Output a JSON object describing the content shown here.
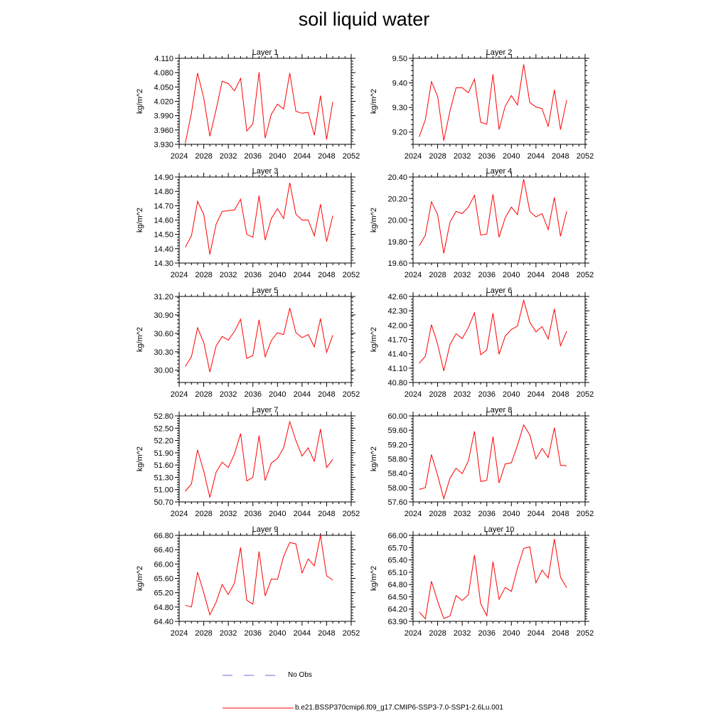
{
  "title": "soil liquid water",
  "colors": {
    "model": "#ff0000",
    "obs": "#6b6bd6",
    "axis": "#000000"
  },
  "chart_data": {
    "type": "line",
    "shared_x": {
      "xlim": [
        2024,
        2052
      ],
      "ticks": [
        2024,
        2028,
        2032,
        2036,
        2040,
        2044,
        2048,
        2052
      ],
      "tick_labels": [
        "2024",
        "2028",
        "2032",
        "2036",
        "2040",
        "2044",
        "2048",
        "2052"
      ]
    },
    "years": [
      2025,
      2026,
      2027,
      2028,
      2029,
      2030,
      2031,
      2032,
      2033,
      2034,
      2035,
      2036,
      2037,
      2038,
      2039,
      2040,
      2041,
      2042,
      2043,
      2044,
      2045,
      2046,
      2047,
      2048,
      2049
    ],
    "legend": [
      {
        "name": "No Obs",
        "style": "dashed",
        "color": "#6b6bd6"
      },
      {
        "name": "b.e21.BSSP370cmip6.f09_g17.CMIP6-SSP3-7.0-SSP1-2.6Lu.001",
        "style": "solid",
        "color": "#ff0000"
      }
    ],
    "panels": [
      {
        "title": "Layer 1",
        "ylabel": "kg/m^2",
        "ylim": [
          3.93,
          4.11
        ],
        "yticks": [
          "4.110",
          "4.080",
          "4.050",
          "4.020",
          "3.990",
          "3.960",
          "3.930"
        ],
        "ytick_values": [
          4.11,
          4.08,
          4.05,
          4.02,
          3.99,
          3.96,
          3.93
        ],
        "values": [
          3.932,
          3.996,
          4.079,
          4.027,
          3.947,
          4.002,
          4.062,
          4.057,
          4.042,
          4.068,
          3.958,
          3.973,
          4.081,
          3.943,
          3.993,
          4.014,
          4.004,
          4.079,
          3.999,
          3.995,
          3.997,
          3.949,
          4.032,
          3.94,
          4.019
        ]
      },
      {
        "title": "Layer 2",
        "ylabel": "kg/m^2",
        "ylim": [
          9.15,
          9.5
        ],
        "yticks": [
          "9.50",
          "9.40",
          "9.30",
          "9.20"
        ],
        "ytick_values": [
          9.5,
          9.4,
          9.3,
          9.2
        ],
        "values": [
          9.18,
          9.25,
          9.405,
          9.345,
          9.165,
          9.285,
          9.38,
          9.38,
          9.36,
          9.415,
          9.24,
          9.232,
          9.435,
          9.21,
          9.305,
          9.348,
          9.31,
          9.475,
          9.32,
          9.302,
          9.295,
          9.222,
          9.372,
          9.21,
          9.33
        ]
      },
      {
        "title": "Layer 3",
        "ylabel": "kg/m^2",
        "ylim": [
          14.3,
          14.9
        ],
        "yticks": [
          "14.90",
          "14.80",
          "14.70",
          "14.60",
          "14.50",
          "14.40",
          "14.30"
        ],
        "ytick_values": [
          14.9,
          14.8,
          14.7,
          14.6,
          14.5,
          14.4,
          14.3
        ],
        "values": [
          14.41,
          14.49,
          14.73,
          14.64,
          14.36,
          14.57,
          14.66,
          14.665,
          14.67,
          14.745,
          14.5,
          14.48,
          14.77,
          14.46,
          14.61,
          14.68,
          14.61,
          14.86,
          14.64,
          14.6,
          14.6,
          14.49,
          14.71,
          14.45,
          14.63
        ]
      },
      {
        "title": "Layer 4",
        "ylabel": "kg/m^2",
        "ylim": [
          19.6,
          20.4
        ],
        "yticks": [
          "20.40",
          "20.20",
          "20.00",
          "19.80",
          "19.60"
        ],
        "ytick_values": [
          20.4,
          20.2,
          20.0,
          19.8,
          19.6
        ],
        "values": [
          19.76,
          19.86,
          20.17,
          20.05,
          19.69,
          19.98,
          20.08,
          20.06,
          20.12,
          20.23,
          19.86,
          19.87,
          20.24,
          19.84,
          20.02,
          20.12,
          20.05,
          20.38,
          20.08,
          20.03,
          20.06,
          19.91,
          20.21,
          19.85,
          20.08
        ]
      },
      {
        "title": "Layer 5",
        "ylabel": "kg/m^2",
        "ylim": [
          29.8,
          31.2
        ],
        "yticks": [
          "31.20",
          "30.90",
          "30.60",
          "30.30",
          "30.00"
        ],
        "ytick_values": [
          31.2,
          30.9,
          30.6,
          30.3,
          30.0
        ],
        "values": [
          30.06,
          30.22,
          30.69,
          30.45,
          29.97,
          30.39,
          30.55,
          30.49,
          30.63,
          30.83,
          30.19,
          30.24,
          30.82,
          30.22,
          30.48,
          30.61,
          30.58,
          31.01,
          30.61,
          30.53,
          30.58,
          30.38,
          30.84,
          30.29,
          30.57
        ]
      },
      {
        "title": "Layer 6",
        "ylabel": "kg/m^2",
        "ylim": [
          40.8,
          42.6
        ],
        "yticks": [
          "42.60",
          "42.30",
          "42.00",
          "41.70",
          "41.40",
          "41.10",
          "40.80"
        ],
        "ytick_values": [
          42.6,
          42.3,
          42.0,
          41.7,
          41.4,
          41.1,
          40.8
        ],
        "values": [
          41.2,
          41.35,
          42.01,
          41.6,
          41.04,
          41.59,
          41.82,
          41.72,
          41.95,
          42.26,
          41.38,
          41.48,
          42.25,
          41.39,
          41.77,
          41.91,
          41.98,
          42.52,
          42.06,
          41.86,
          41.97,
          41.71,
          42.34,
          41.57,
          41.87
        ]
      },
      {
        "title": "Layer 7",
        "ylabel": "kg/m^2",
        "ylim": [
          50.7,
          52.8
        ],
        "yticks": [
          "52.80",
          "52.50",
          "52.20",
          "51.90",
          "51.60",
          "51.30",
          "51.00",
          "50.70"
        ],
        "ytick_values": [
          52.8,
          52.5,
          52.2,
          51.9,
          51.6,
          51.3,
          51.0,
          50.7
        ],
        "values": [
          50.96,
          51.14,
          51.97,
          51.45,
          50.81,
          51.42,
          51.67,
          51.54,
          51.87,
          52.37,
          51.21,
          51.3,
          52.32,
          51.22,
          51.65,
          51.76,
          52.02,
          52.66,
          52.2,
          51.82,
          52.02,
          51.69,
          52.48,
          51.54,
          51.74
        ]
      },
      {
        "title": "Layer 8",
        "ylabel": "kg/m^2",
        "ylim": [
          57.6,
          60.0
        ],
        "yticks": [
          "60.00",
          "59.60",
          "59.20",
          "58.80",
          "58.40",
          "58.00",
          "57.60"
        ],
        "ytick_values": [
          60.0,
          59.6,
          59.2,
          58.8,
          58.4,
          58.0,
          57.6
        ],
        "values": [
          57.95,
          58.0,
          58.92,
          58.34,
          57.69,
          58.26,
          58.54,
          58.39,
          58.74,
          59.57,
          58.17,
          58.2,
          59.42,
          58.13,
          58.66,
          58.69,
          59.18,
          59.75,
          59.47,
          58.8,
          59.09,
          58.84,
          59.67,
          58.62,
          58.61
        ]
      },
      {
        "title": "Layer 9",
        "ylabel": "kg/m^2",
        "ylim": [
          64.4,
          66.8
        ],
        "yticks": [
          "66.80",
          "66.40",
          "66.00",
          "65.60",
          "65.20",
          "64.80",
          "64.40"
        ],
        "ytick_values": [
          66.8,
          66.4,
          66.0,
          65.6,
          65.2,
          64.8,
          64.4
        ],
        "values": [
          64.85,
          64.8,
          65.77,
          65.2,
          64.58,
          64.93,
          65.43,
          65.15,
          65.47,
          66.46,
          64.99,
          64.88,
          66.35,
          65.11,
          65.58,
          65.57,
          66.21,
          66.6,
          66.56,
          65.75,
          66.14,
          65.95,
          66.8,
          65.67,
          65.55
        ]
      },
      {
        "title": "Layer 10",
        "ylabel": "kg/m^2",
        "ylim": [
          63.9,
          66.0
        ],
        "yticks": [
          "66.00",
          "65.70",
          "65.40",
          "65.10",
          "64.80",
          "64.50",
          "64.20",
          "63.90"
        ],
        "ytick_values": [
          66.0,
          65.7,
          65.4,
          65.1,
          64.8,
          64.5,
          64.2,
          63.9
        ],
        "values": [
          64.13,
          63.96,
          64.88,
          64.39,
          63.97,
          64.03,
          64.53,
          64.41,
          64.55,
          65.52,
          64.33,
          64.04,
          65.36,
          64.44,
          64.73,
          64.63,
          65.2,
          65.68,
          65.72,
          64.84,
          65.15,
          64.96,
          65.91,
          64.98,
          64.72
        ]
      }
    ]
  }
}
